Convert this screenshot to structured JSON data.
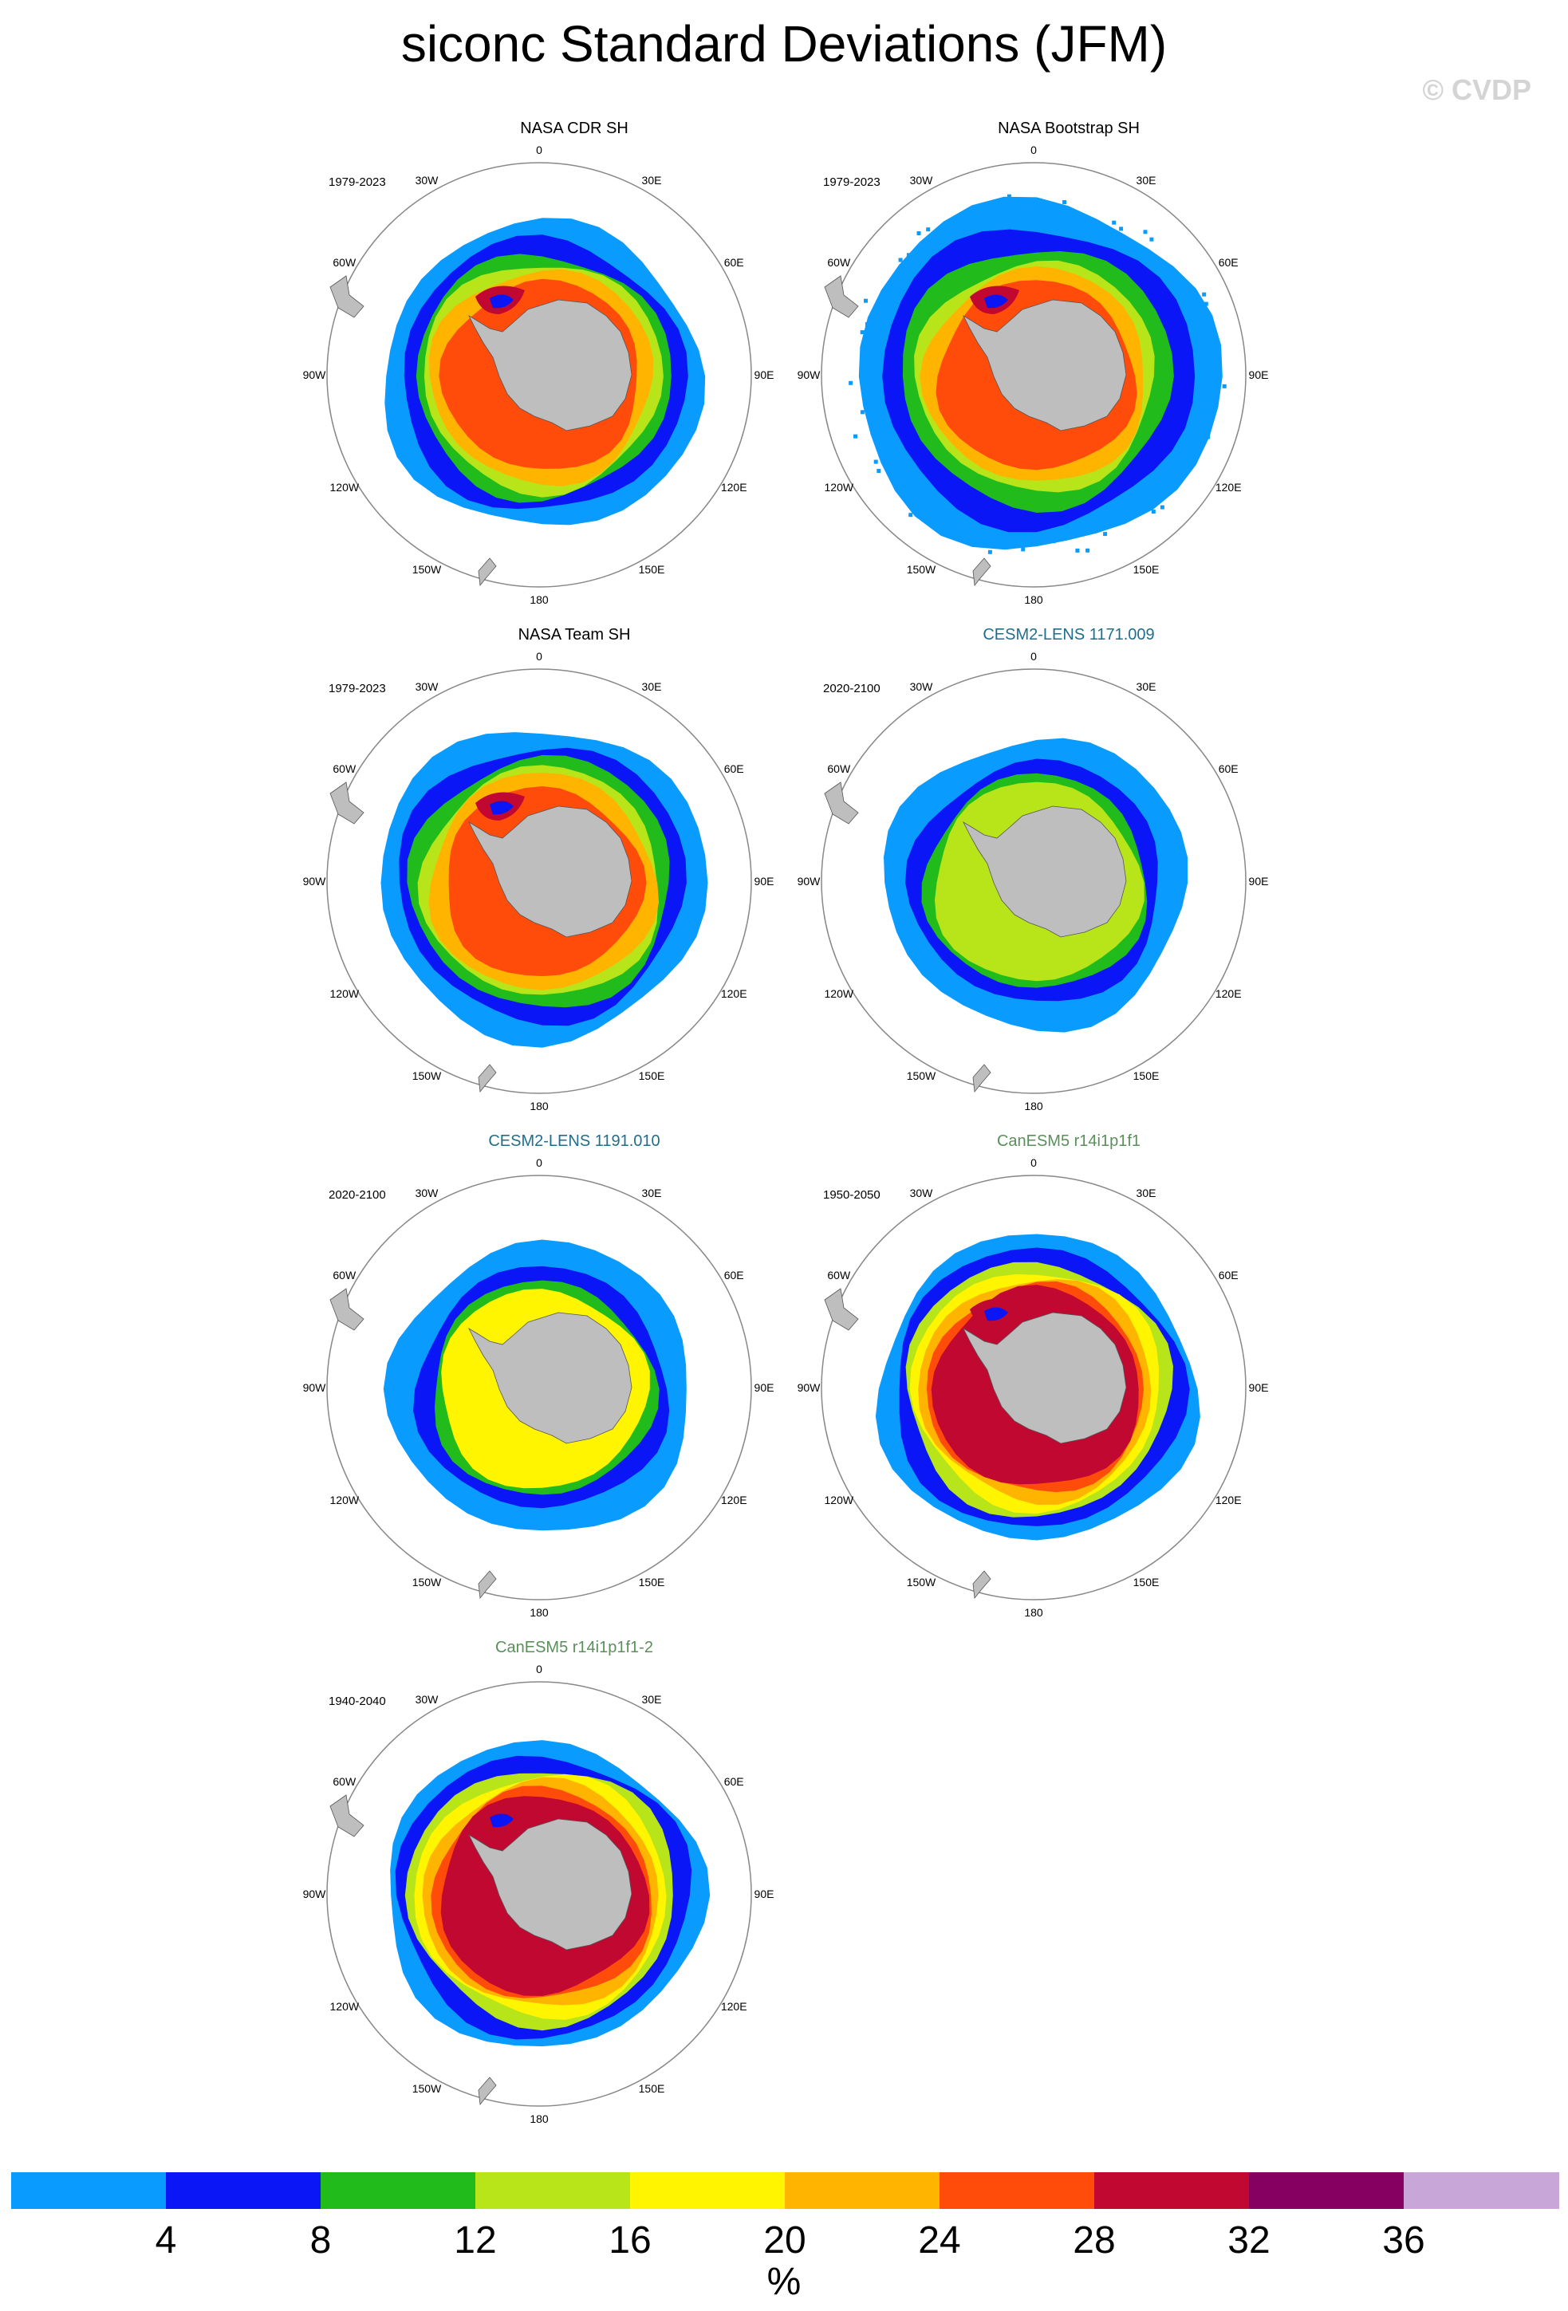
{
  "title": "siconc Standard Deviations (JFM)",
  "watermark": "© CVDP",
  "panels": [
    {
      "title": "NASA CDR SH",
      "period": "1979-2023",
      "title_color": "#000000"
    },
    {
      "title": "NASA Bootstrap SH",
      "period": "1979-2023",
      "title_color": "#000000"
    },
    {
      "title": "NASA Team SH",
      "period": "1979-2023",
      "title_color": "#000000"
    },
    {
      "title": "CESM2-LENS 1171.009",
      "period": "2020-2100",
      "title_color": "#1f6e8c"
    },
    {
      "title": "CESM2-LENS 1191.010",
      "period": "2020-2100",
      "title_color": "#1f6e8c"
    },
    {
      "title": "CanESM5 r14i1p1f1",
      "period": "1950-2050",
      "title_color": "#5a8f5a"
    },
    {
      "title": "CanESM5 r14i1p1f1-2",
      "period": "1940-2040",
      "title_color": "#5a8f5a"
    }
  ],
  "longitude_labels": {
    "lon_0": "0",
    "lon_30e": "30E",
    "lon_60e": "60E",
    "lon_90e": "90E",
    "lon_120e": "120E",
    "lon_150e": "150E",
    "lon_180": "180",
    "lon_150w": "150W",
    "lon_120w": "120W",
    "lon_90w": "90W",
    "lon_60w": "60W",
    "lon_30w": "30W"
  },
  "colorbar": {
    "colors": [
      "#0a9bff",
      "#0a16f5",
      "#21bb1c",
      "#b8e51a",
      "#fff500",
      "#ffb400",
      "#ff4c0b",
      "#c00830",
      "#850060",
      "#c8a6d8"
    ],
    "tick_labels": [
      "4",
      "8",
      "12",
      "16",
      "20",
      "24",
      "28",
      "32",
      "36"
    ],
    "units": "%"
  },
  "colors": {
    "land": "#bebebe",
    "background": "#ffffff"
  }
}
